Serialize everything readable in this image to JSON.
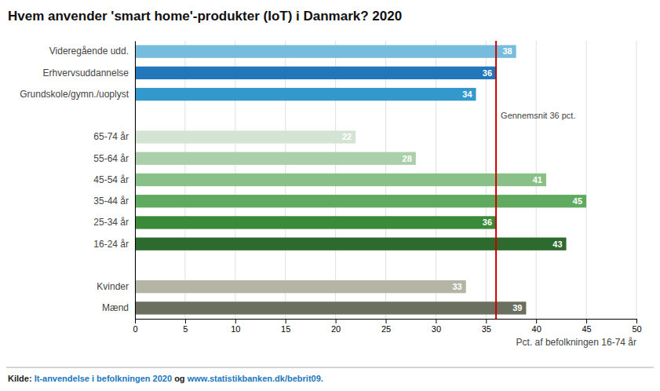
{
  "chart_data": {
    "type": "bar",
    "orientation": "horizontal",
    "title": "Hvem anvender 'smart home'-produkter (IoT) i Danmark? 2020",
    "xlabel": "Pct. af befolkningen 16-74 år",
    "categories": [
      "Mænd",
      "Kvinder",
      null,
      "16-24 år",
      "25-34 år",
      "35-44 år",
      "45-54 år",
      "55-64 år",
      "65-74 år",
      null,
      "Grundskole/gymn./uoplyst",
      "Erhvervsuddannelse",
      "Videregående udd."
    ],
    "values": [
      39,
      33,
      null,
      43,
      36,
      45,
      41,
      28,
      22,
      null,
      34,
      36,
      38
    ],
    "colors": [
      "#6b6f5e",
      "#b5b5a5",
      null,
      "#2d6a2d",
      "#3a8a3a",
      "#5faa5f",
      "#88c088",
      "#aacfaa",
      "#d4e4d4",
      null,
      "#3399cc",
      "#2277bb",
      "#77bbdd"
    ],
    "xlim": [
      0,
      50
    ],
    "xticks": [
      0,
      5,
      10,
      15,
      20,
      25,
      30,
      35,
      40,
      45,
      50
    ],
    "grid": true,
    "data_labels": true,
    "annotations": [
      {
        "text": "Gennemsnit 36 pct.",
        "x": 36,
        "color": "#cc0000"
      }
    ],
    "source": [
      {
        "text": "Kilde: ",
        "color": "#222222"
      },
      {
        "text": "It-anvendelse i befolkningen 2020",
        "color": "#2277bb"
      },
      {
        "text": " og ",
        "color": "#222222"
      },
      {
        "text": "www.statistikbanken.dk/bebrit09.",
        "color": "#2277bb"
      }
    ]
  }
}
